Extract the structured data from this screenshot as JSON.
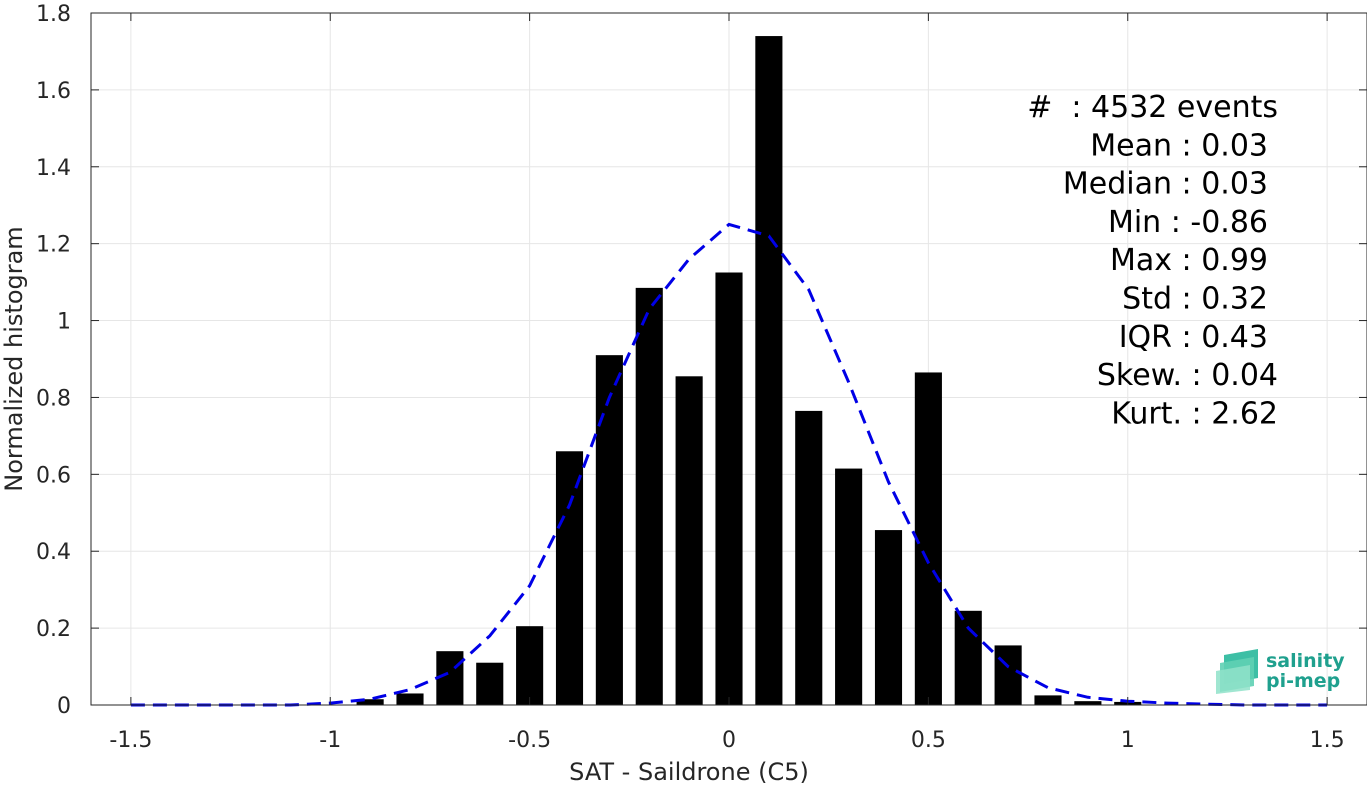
{
  "chart_data": {
    "type": "bar",
    "xlabel": "SAT - Saildrone (C5)",
    "ylabel": "Normalized histogram",
    "xlim": [
      -1.6,
      1.6
    ],
    "ylim": [
      0,
      1.8
    ],
    "xticks": [
      -1.5,
      -1,
      -0.5,
      0,
      0.5,
      1,
      1.5
    ],
    "xtick_labels": [
      "-1.5",
      "-1",
      "-0.5",
      "0",
      "0.5",
      "1",
      "1.5"
    ],
    "yticks": [
      0,
      0.2,
      0.4,
      0.6,
      0.8,
      1,
      1.2,
      1.4,
      1.6,
      1.8
    ],
    "ytick_labels": [
      "0",
      "0.2",
      "0.4",
      "0.6",
      "0.8",
      "1",
      "1.2",
      "1.4",
      "1.6",
      "1.8"
    ],
    "grid": true,
    "bar_color": "#000000",
    "bars": {
      "x": [
        -0.9,
        -0.8,
        -0.7,
        -0.6,
        -0.5,
        -0.4,
        -0.3,
        -0.2,
        -0.1,
        0,
        0.1,
        0.2,
        0.3,
        0.4,
        0.5,
        0.6,
        0.7,
        0.8,
        0.9,
        1.0
      ],
      "values": [
        0.015,
        0.03,
        0.14,
        0.11,
        0.205,
        0.66,
        0.91,
        1.085,
        0.855,
        1.125,
        1.74,
        0.765,
        0.615,
        0.455,
        0.865,
        0.245,
        0.155,
        0.025,
        0.01,
        0.008
      ]
    },
    "fit_curve": {
      "style": "dashed",
      "color": "#0000e6",
      "x": [
        -1.5,
        -1.4,
        -1.3,
        -1.2,
        -1.1,
        -1.0,
        -0.9,
        -0.8,
        -0.7,
        -0.6,
        -0.5,
        -0.4,
        -0.3,
        -0.2,
        -0.1,
        0,
        0.1,
        0.2,
        0.3,
        0.4,
        0.5,
        0.6,
        0.7,
        0.8,
        0.9,
        1.0,
        1.1,
        1.2,
        1.3,
        1.4,
        1.5
      ],
      "y": [
        0.0,
        0.0,
        0.0,
        0.0,
        0.0,
        0.005,
        0.015,
        0.04,
        0.085,
        0.18,
        0.31,
        0.52,
        0.8,
        1.03,
        1.16,
        1.25,
        1.22,
        1.08,
        0.84,
        0.58,
        0.37,
        0.2,
        0.1,
        0.045,
        0.02,
        0.01,
        0.005,
        0.002,
        0.0,
        0.0,
        0.0
      ]
    },
    "annotations": [
      "#  : 4532 events",
      "Mean : 0.03",
      "Median : 0.03",
      "Min : -0.86",
      "Max : 0.99",
      "Std : 0.32",
      "IQR : 0.43",
      "Skew. : 0.04",
      "Kurt. : 2.62"
    ]
  },
  "logo": {
    "line1": "salinity",
    "line2": "pi-mep",
    "color": "#1fa08e"
  }
}
